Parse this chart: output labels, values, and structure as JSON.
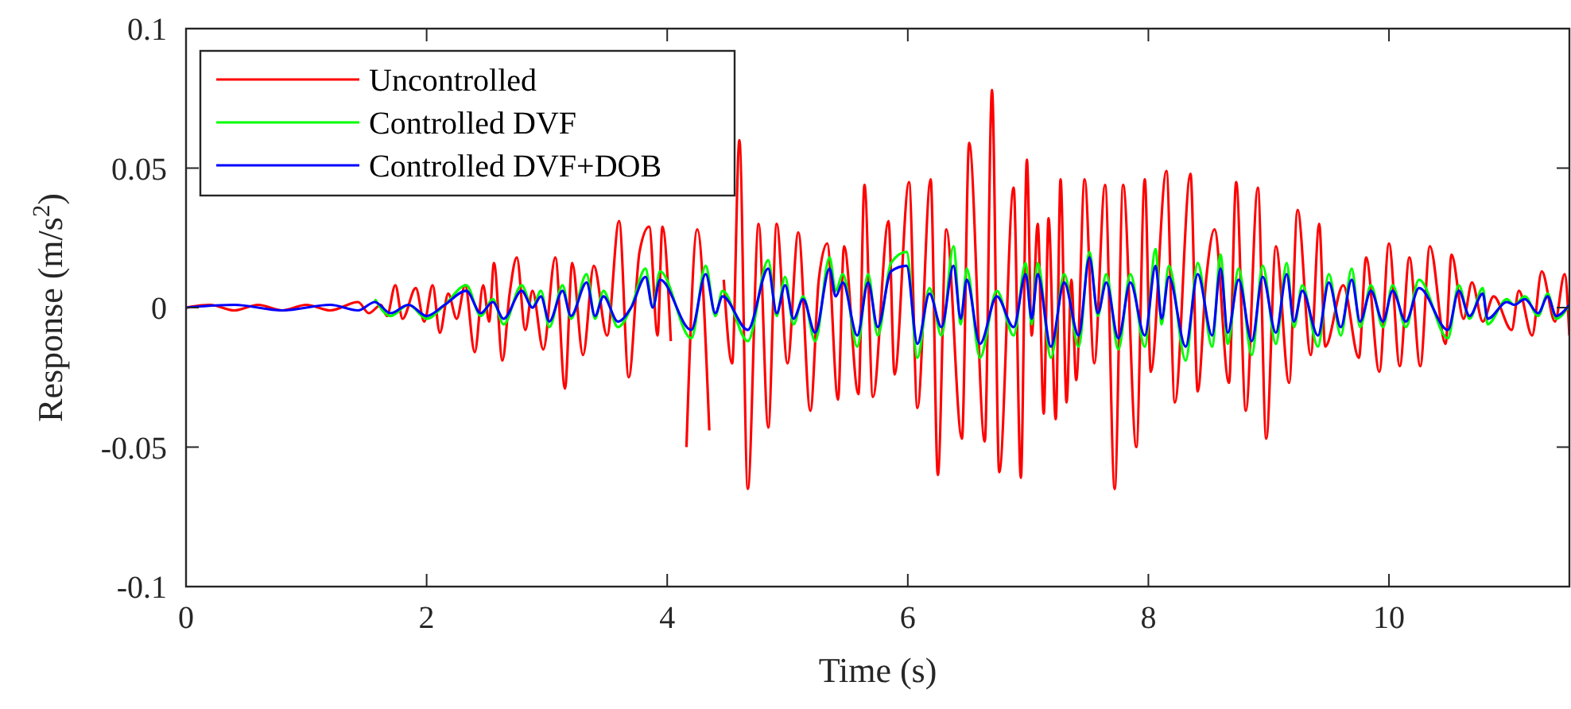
{
  "chart_data": {
    "type": "line",
    "xlabel": "Time (s)",
    "ylabel": "Response (m/s$^{2}$)",
    "xlim": [
      0,
      11.5
    ],
    "xticks": [
      0,
      2,
      4,
      6,
      8,
      10
    ],
    "ylim": [
      -0.1,
      0.1
    ],
    "yticks": [
      -0.1,
      -0.05,
      0,
      0.05,
      0.1
    ],
    "grid": false,
    "legend": "top left",
    "marker": "none",
    "line_style": "solid",
    "series": [
      {
        "name": "Uncontrolled",
        "color": "#ff0000",
        "x": [
          0,
          0.2,
          0.4,
          0.6,
          0.8,
          1.0,
          1.2,
          1.43,
          1.52,
          1.62,
          1.67,
          1.74,
          1.8,
          1.91,
          1.98,
          2.05,
          2.11,
          2.18,
          2.25,
          2.32,
          2.4,
          2.47,
          2.52,
          2.56,
          2.63,
          2.69,
          2.75,
          2.82,
          2.88,
          2.97,
          3.07,
          3.15,
          3.21,
          3.3,
          3.39,
          3.5,
          3.6,
          3.68,
          3.77,
          3.85,
          3.92,
          3.96,
          4.03,
          4.1,
          4.16,
          4.25,
          4.35,
          4.4,
          4.47,
          4.54,
          4.6,
          4.67,
          4.76,
          4.84,
          4.91,
          5.0,
          5.09,
          5.19,
          5.26,
          5.33,
          5.42,
          5.47,
          5.59,
          5.64,
          5.71,
          5.84,
          5.89,
          6.01,
          6.08,
          6.19,
          6.25,
          6.32,
          6.45,
          6.51,
          6.64,
          6.7,
          6.76,
          6.88,
          6.94,
          6.99,
          7.03,
          7.08,
          7.13,
          7.17,
          7.23,
          7.27,
          7.32,
          7.36,
          7.4,
          7.47,
          7.55,
          7.64,
          7.72,
          7.79,
          7.9,
          7.97,
          8.02,
          8.15,
          8.22,
          8.35,
          8.41,
          8.48,
          8.55,
          8.67,
          8.73,
          8.81,
          8.91,
          8.98,
          9.06,
          9.17,
          9.24,
          9.35,
          9.42,
          9.47,
          9.62,
          9.75,
          9.81,
          9.92,
          10.0,
          10.09,
          10.17,
          10.26,
          10.34,
          10.47,
          10.52,
          10.62,
          10.69,
          10.78,
          10.87,
          11.02,
          11.08,
          11.19,
          11.27,
          11.38,
          11.46,
          11.5
        ],
        "values": [
          0,
          0.001,
          -0.001,
          0.001,
          -0.001,
          0.001,
          -0.001,
          0.002,
          -0.002,
          0.001,
          -0.003,
          0.008,
          -0.004,
          0.007,
          -0.005,
          0.008,
          -0.009,
          0.005,
          -0.004,
          0.008,
          -0.016,
          0.008,
          -0.005,
          0.016,
          -0.019,
          0.005,
          0.018,
          -0.008,
          0.006,
          -0.015,
          0.018,
          -0.029,
          0.016,
          -0.017,
          0.015,
          -0.01,
          0.031,
          -0.025,
          0.02,
          0.029,
          -0.01,
          0.029,
          -0.012,
          null,
          -0.05,
          0.028,
          -0.044,
          null,
          0.01,
          -0.02,
          0.06,
          -0.065,
          0.03,
          -0.043,
          0.03,
          -0.02,
          0.027,
          -0.037,
          0.01,
          0.023,
          -0.033,
          0.022,
          -0.031,
          0.044,
          -0.032,
          0.031,
          -0.024,
          0.045,
          -0.036,
          0.046,
          -0.06,
          0.028,
          -0.047,
          0.059,
          -0.048,
          0.078,
          -0.059,
          0.043,
          -0.061,
          0.053,
          -0.01,
          0.03,
          -0.038,
          0.032,
          -0.04,
          0.046,
          -0.034,
          0.01,
          -0.026,
          0.046,
          -0.02,
          0.044,
          -0.065,
          0.044,
          -0.05,
          0.046,
          -0.023,
          0.049,
          -0.034,
          0.048,
          -0.03,
          0.01,
          0.028,
          -0.027,
          0.045,
          -0.037,
          0.043,
          -0.047,
          0.022,
          -0.027,
          0.035,
          -0.017,
          0.03,
          -0.014,
          0.008,
          -0.018,
          0.018,
          -0.023,
          0.023,
          -0.021,
          0.018,
          -0.021,
          0.022,
          -0.013,
          0.019,
          -0.004,
          0.009,
          -0.005,
          0.004,
          -0.008,
          0.006,
          -0.01,
          0.013,
          -0.005,
          0.012,
          -0.01
        ]
      },
      {
        "name": "Controlled DVF",
        "color": "#00ff00",
        "x": [
          1.57,
          1.7,
          1.85,
          2.0,
          2.15,
          2.33,
          2.45,
          2.55,
          2.64,
          2.79,
          2.88,
          2.95,
          3.02,
          3.13,
          3.2,
          3.33,
          3.4,
          3.47,
          3.59,
          3.7,
          3.82,
          3.88,
          3.94,
          4.2,
          4.32,
          4.4,
          4.46,
          4.67,
          4.84,
          4.91,
          4.98,
          5.05,
          5.13,
          5.23,
          5.35,
          5.4,
          5.46,
          5.58,
          5.67,
          5.75,
          5.86,
          5.99,
          6.08,
          6.18,
          6.28,
          6.38,
          6.44,
          6.49,
          6.6,
          6.74,
          6.88,
          6.98,
          7.03,
          7.08,
          7.19,
          7.3,
          7.42,
          7.51,
          7.58,
          7.65,
          7.75,
          7.85,
          7.97,
          8.06,
          8.11,
          8.17,
          8.31,
          8.41,
          8.53,
          8.6,
          8.66,
          8.75,
          8.86,
          8.95,
          9.06,
          9.15,
          9.21,
          9.28,
          9.41,
          9.5,
          9.6,
          9.69,
          9.76,
          9.85,
          9.95,
          10.03,
          10.14,
          10.25,
          10.49,
          10.58,
          10.67,
          10.78,
          10.82,
          10.98,
          11.04,
          11.13,
          11.24,
          11.32,
          11.39,
          11.5
        ],
        "values": [
          0.003,
          -0.003,
          0.001,
          -0.004,
          0.001,
          0.008,
          -0.003,
          0.003,
          -0.006,
          0.008,
          0,
          0.006,
          -0.007,
          0.008,
          -0.004,
          0.012,
          -0.004,
          0.006,
          -0.007,
          0,
          0.014,
          0,
          0.013,
          -0.011,
          0.015,
          -0.003,
          0.006,
          -0.012,
          0.017,
          -0.003,
          0.011,
          -0.006,
          0.004,
          -0.012,
          0.018,
          0.006,
          0.012,
          -0.014,
          0.012,
          -0.01,
          0.016,
          0.02,
          -0.018,
          0.007,
          -0.01,
          0.022,
          -0.006,
          0.014,
          -0.018,
          0.006,
          -0.01,
          0.016,
          -0.006,
          0.016,
          -0.018,
          0.012,
          -0.014,
          0.02,
          -0.003,
          0.012,
          -0.015,
          0.012,
          -0.014,
          0.021,
          -0.006,
          0.015,
          -0.019,
          0.016,
          -0.014,
          0.019,
          -0.013,
          0.014,
          -0.017,
          0.015,
          -0.013,
          0.016,
          -0.007,
          0.008,
          -0.014,
          0.012,
          -0.01,
          0.014,
          -0.007,
          0.008,
          -0.007,
          0.008,
          -0.007,
          0.01,
          -0.011,
          0.008,
          -0.004,
          0.007,
          -0.006,
          0.003,
          0.001,
          0.004,
          -0.003,
          0.005,
          -0.004,
          0.001
        ]
      },
      {
        "name": "Controlled DVF+DOB",
        "color": "#0000ff",
        "x": [
          0,
          0.4,
          0.8,
          1.2,
          1.43,
          1.57,
          1.7,
          1.85,
          2.0,
          2.15,
          2.33,
          2.45,
          2.55,
          2.64,
          2.79,
          2.88,
          2.95,
          3.02,
          3.13,
          3.2,
          3.33,
          3.4,
          3.47,
          3.59,
          3.7,
          3.82,
          3.88,
          3.94,
          4.2,
          4.32,
          4.4,
          4.46,
          4.67,
          4.84,
          4.91,
          4.98,
          5.05,
          5.13,
          5.23,
          5.35,
          5.4,
          5.46,
          5.58,
          5.67,
          5.75,
          5.86,
          5.99,
          6.08,
          6.18,
          6.28,
          6.38,
          6.44,
          6.49,
          6.6,
          6.74,
          6.88,
          6.98,
          7.03,
          7.08,
          7.19,
          7.3,
          7.42,
          7.51,
          7.58,
          7.65,
          7.75,
          7.85,
          7.97,
          8.06,
          8.11,
          8.17,
          8.31,
          8.41,
          8.53,
          8.6,
          8.66,
          8.75,
          8.86,
          8.95,
          9.06,
          9.15,
          9.21,
          9.28,
          9.41,
          9.5,
          9.6,
          9.69,
          9.76,
          9.85,
          9.95,
          10.03,
          10.14,
          10.25,
          10.49,
          10.58,
          10.67,
          10.78,
          10.82,
          10.98,
          11.04,
          11.13,
          11.24,
          11.32,
          11.39,
          11.5
        ],
        "values": [
          0,
          0.001,
          -0.001,
          0.001,
          -0.001,
          0.002,
          -0.002,
          0.001,
          -0.003,
          0.001,
          0.006,
          -0.002,
          0.002,
          -0.004,
          0.006,
          0,
          0.004,
          -0.005,
          0.006,
          -0.003,
          0.009,
          -0.003,
          0.004,
          -0.005,
          0,
          0.011,
          0,
          0.01,
          -0.008,
          0.012,
          -0.002,
          0.004,
          -0.008,
          0.014,
          -0.002,
          0.008,
          -0.004,
          0.003,
          -0.009,
          0.014,
          0.004,
          0.009,
          -0.01,
          0.009,
          -0.007,
          0.013,
          0.015,
          -0.013,
          0.005,
          -0.007,
          0.015,
          -0.004,
          0.01,
          -0.013,
          0.004,
          -0.007,
          0.012,
          -0.004,
          0.012,
          -0.014,
          0.009,
          -0.01,
          0.018,
          -0.002,
          0.009,
          -0.011,
          0.009,
          -0.01,
          0.015,
          -0.004,
          0.011,
          -0.014,
          0.012,
          -0.01,
          0.014,
          -0.009,
          0.01,
          -0.012,
          0.011,
          -0.009,
          0.012,
          -0.005,
          0.006,
          -0.01,
          0.009,
          -0.007,
          0.01,
          -0.005,
          0.006,
          -0.005,
          0.006,
          -0.005,
          0.007,
          -0.008,
          0.006,
          -0.003,
          0.005,
          -0.004,
          0.002,
          0.001,
          0.003,
          -0.002,
          0.004,
          -0.003,
          0.001
        ]
      }
    ]
  }
}
